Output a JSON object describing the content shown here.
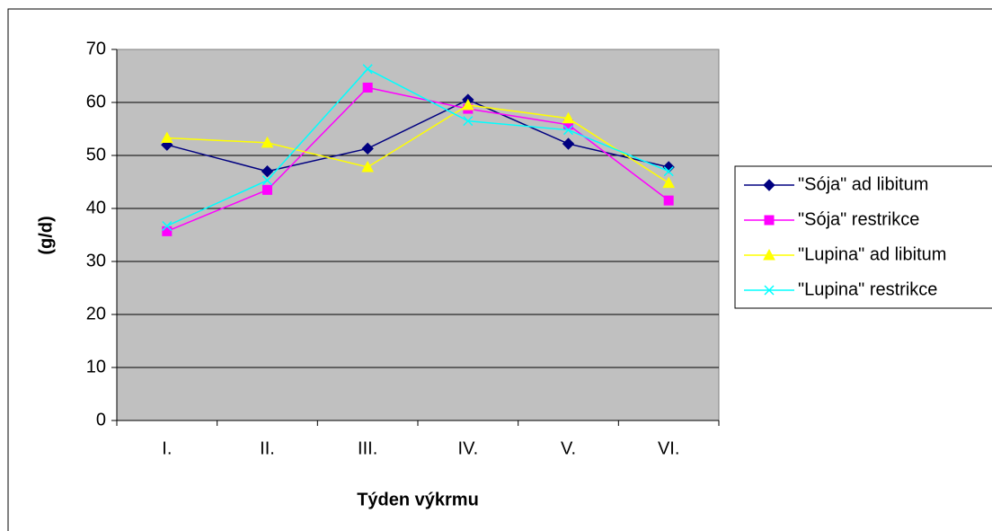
{
  "chart_data": {
    "type": "line",
    "x_label": "Týden výkrmu",
    "y_label": "(g/d)",
    "categories": [
      "I.",
      "II.",
      "III.",
      "IV.",
      "V.",
      "VI."
    ],
    "series": [
      {
        "name": "\"Sója\" ad libitum",
        "color": "#000080",
        "marker": "diamond",
        "values": [
          52,
          47,
          51.3,
          60.5,
          52.2,
          47.8
        ]
      },
      {
        "name": "\"Sója\" restrikce",
        "color": "#ff00ff",
        "marker": "square",
        "values": [
          35.7,
          43.5,
          62.8,
          58.8,
          55.8,
          41.5
        ]
      },
      {
        "name": "\"Lupina\" ad libitum",
        "color": "#ffff00",
        "marker": "triangle",
        "values": [
          53.3,
          52.4,
          47.8,
          59.5,
          57,
          44.8
        ]
      },
      {
        "name": "\"Lupina\" restrikce",
        "color": "#00ffff",
        "marker": "x",
        "values": [
          36.7,
          45.3,
          66.3,
          56.5,
          54.8,
          47
        ]
      }
    ],
    "ylim": [
      0,
      70
    ],
    "yticks": [
      0,
      10,
      20,
      30,
      40,
      50,
      60,
      70
    ],
    "grid": true,
    "legend": "right"
  }
}
